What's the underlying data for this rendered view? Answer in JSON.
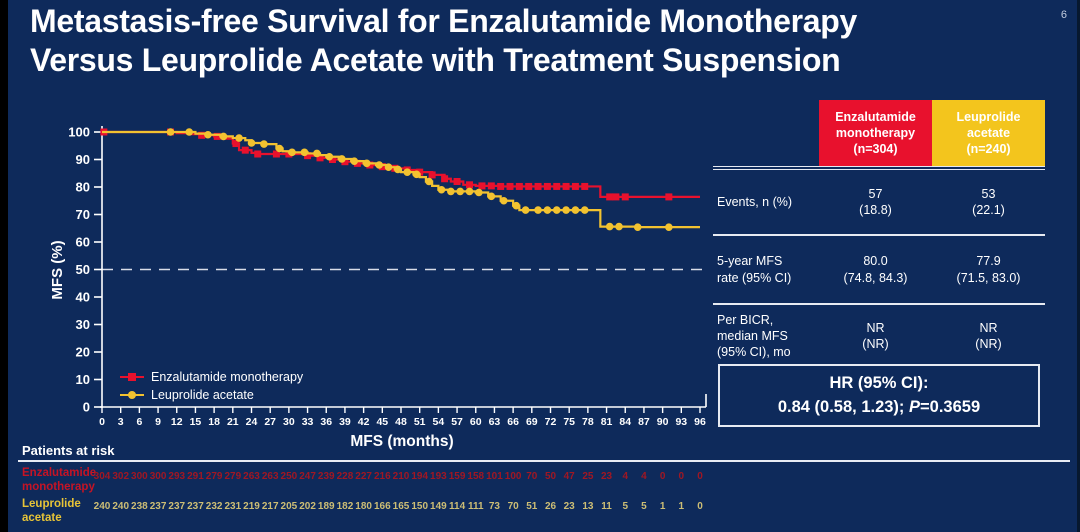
{
  "slide": {
    "title": "Metastasis-free Survival for Enzalutamide Monotherapy\nVersus Leuprolide Acetate with Treatment Suspension",
    "page_number": "6"
  },
  "colors": {
    "background": "#0e2a5b",
    "accent_red": "#e8112d",
    "accent_yellow": "#f2c230",
    "axis_text": "#ffffff",
    "reference_dash": "#d9dde8",
    "table_line": "#e6eaf2",
    "at_risk_red_label": "#c51425",
    "at_risk_red_numbers": "#a01723",
    "at_risk_yellow_label": "#e7c437",
    "at_risk_yellow_numbers": "#cdbe75"
  },
  "chart_data": {
    "type": "line",
    "subtype": "kaplan-meier-step",
    "title": "",
    "xlabel": "MFS (months)",
    "ylabel": "MFS (%)",
    "xlim": [
      0,
      96
    ],
    "ylim": [
      0,
      100
    ],
    "x_ticks": [
      0,
      3,
      6,
      9,
      12,
      15,
      18,
      21,
      24,
      27,
      30,
      33,
      36,
      39,
      42,
      45,
      48,
      51,
      54,
      57,
      60,
      63,
      66,
      69,
      72,
      75,
      78,
      81,
      84,
      87,
      90,
      93,
      96
    ],
    "y_ticks": [
      0,
      10,
      20,
      30,
      40,
      50,
      60,
      70,
      80,
      90,
      100
    ],
    "grid": false,
    "legend_position": "inside-bottom-left",
    "reference_line_y": 50,
    "series": [
      {
        "name": "Enzalutamide monotherapy",
        "color": "#e8112d",
        "marker": "square",
        "points": [
          [
            0,
            100
          ],
          [
            10,
            100
          ],
          [
            12,
            99.6
          ],
          [
            14,
            99.2
          ],
          [
            16,
            98.8
          ],
          [
            18,
            98.4
          ],
          [
            20,
            97.6
          ],
          [
            21,
            95.8
          ],
          [
            22,
            93.4
          ],
          [
            24,
            92.4
          ],
          [
            25,
            92
          ],
          [
            33,
            91.4
          ],
          [
            35,
            90.6
          ],
          [
            37,
            90
          ],
          [
            39,
            89.2
          ],
          [
            41,
            88.6
          ],
          [
            43,
            88
          ],
          [
            45,
            87.4
          ],
          [
            47,
            86.8
          ],
          [
            49,
            86.2
          ],
          [
            51,
            85.4
          ],
          [
            53,
            84.4
          ],
          [
            55,
            83
          ],
          [
            56,
            82
          ],
          [
            58,
            80.8
          ],
          [
            60,
            80.4
          ],
          [
            64,
            80.2
          ],
          [
            79,
            80.2
          ],
          [
            80,
            76.4
          ],
          [
            96,
            76.4
          ]
        ],
        "censor_months": [
          0.3,
          11,
          16,
          18.5,
          21.5,
          23,
          25,
          28,
          30,
          33,
          35,
          37,
          39,
          41,
          43,
          45,
          47,
          49,
          51,
          53,
          55,
          57,
          59,
          61,
          62.5,
          64,
          65.5,
          67,
          68.5,
          70,
          71.5,
          73,
          74.5,
          76,
          77.5,
          81.5,
          82.5,
          84,
          91
        ]
      },
      {
        "name": "Leuprolide acetate",
        "color": "#f2c230",
        "marker": "circle",
        "points": [
          [
            0,
            100
          ],
          [
            13,
            100
          ],
          [
            15,
            99.4
          ],
          [
            17,
            99
          ],
          [
            19,
            98.4
          ],
          [
            21,
            97.8
          ],
          [
            23,
            97
          ],
          [
            24,
            96
          ],
          [
            26,
            95.6
          ],
          [
            28,
            94
          ],
          [
            29,
            93
          ],
          [
            30,
            92.6
          ],
          [
            33,
            92.2
          ],
          [
            35,
            91.6
          ],
          [
            36,
            91
          ],
          [
            38,
            90.2
          ],
          [
            40,
            89.4
          ],
          [
            42,
            88.6
          ],
          [
            44,
            88
          ],
          [
            46,
            87.2
          ],
          [
            47,
            86.4
          ],
          [
            48,
            85.4
          ],
          [
            50,
            84.6
          ],
          [
            51,
            83.6
          ],
          [
            52,
            82
          ],
          [
            53,
            80.4
          ],
          [
            54,
            79
          ],
          [
            56,
            78.4
          ],
          [
            60,
            78
          ],
          [
            62,
            76.6
          ],
          [
            64,
            75
          ],
          [
            66,
            73.2
          ],
          [
            67,
            71.6
          ],
          [
            79,
            71.6
          ],
          [
            80,
            65.6
          ],
          [
            86,
            65.4
          ],
          [
            96,
            65.4
          ]
        ],
        "censor_months": [
          11,
          14,
          17,
          19.5,
          22,
          24,
          26,
          28.5,
          30.5,
          32.5,
          34.5,
          36.5,
          38.5,
          40.5,
          42.5,
          44.5,
          46,
          47.5,
          49,
          50.5,
          52.5,
          54.5,
          56,
          57.5,
          59,
          60.5,
          62.5,
          64.5,
          66.5,
          68,
          70,
          71.5,
          73,
          74.5,
          76,
          77.5,
          81.5,
          83,
          86,
          91
        ]
      }
    ],
    "at_risk": {
      "title": "Patients at risk",
      "rows": [
        {
          "label": "Enzalutamide\nmonotherapy",
          "label_color": "#c51425",
          "count_color": "#a01723",
          "counts": [
            304,
            302,
            300,
            300,
            293,
            291,
            279,
            279,
            263,
            263,
            250,
            247,
            239,
            228,
            227,
            216,
            210,
            194,
            193,
            159,
            158,
            101,
            100,
            70,
            50,
            47,
            25,
            23,
            4,
            4,
            0,
            0,
            0
          ]
        },
        {
          "label": "Leuprolide\nacetate",
          "label_color": "#e7c437",
          "count_color": "#cdbe75",
          "counts": [
            240,
            240,
            238,
            237,
            237,
            237,
            232,
            231,
            219,
            217,
            205,
            202,
            189,
            182,
            180,
            166,
            165,
            150,
            149,
            114,
            111,
            73,
            70,
            51,
            26,
            23,
            13,
            11,
            5,
            5,
            1,
            1,
            0
          ]
        }
      ]
    }
  },
  "table": {
    "col_headers": [
      {
        "label": "Enzalutamide\nmonotherapy\n(n=304)",
        "bg": "#e8112d"
      },
      {
        "label": "Leuprolide\nacetate\n(n=240)",
        "bg": "#f3c51d"
      }
    ],
    "rows": [
      {
        "label": "Events, n (%)",
        "values": [
          "57\n(18.8)",
          "53\n(22.1)"
        ]
      },
      {
        "label": "5-year MFS\nrate (95% CI)",
        "values": [
          "80.0\n(74.8, 84.3)",
          "77.9\n(71.5, 83.0)"
        ]
      },
      {
        "label": "Per BICR,\nmedian MFS\n(95% CI), mo",
        "values": [
          "NR\n(NR)",
          "NR\n(NR)"
        ]
      }
    ],
    "hr_box": {
      "line1": "HR (95% CI):",
      "line2_prefix": "0.84 (0.58, 1.23); ",
      "p_label": "P",
      "line2_suffix": "=0.3659"
    }
  }
}
